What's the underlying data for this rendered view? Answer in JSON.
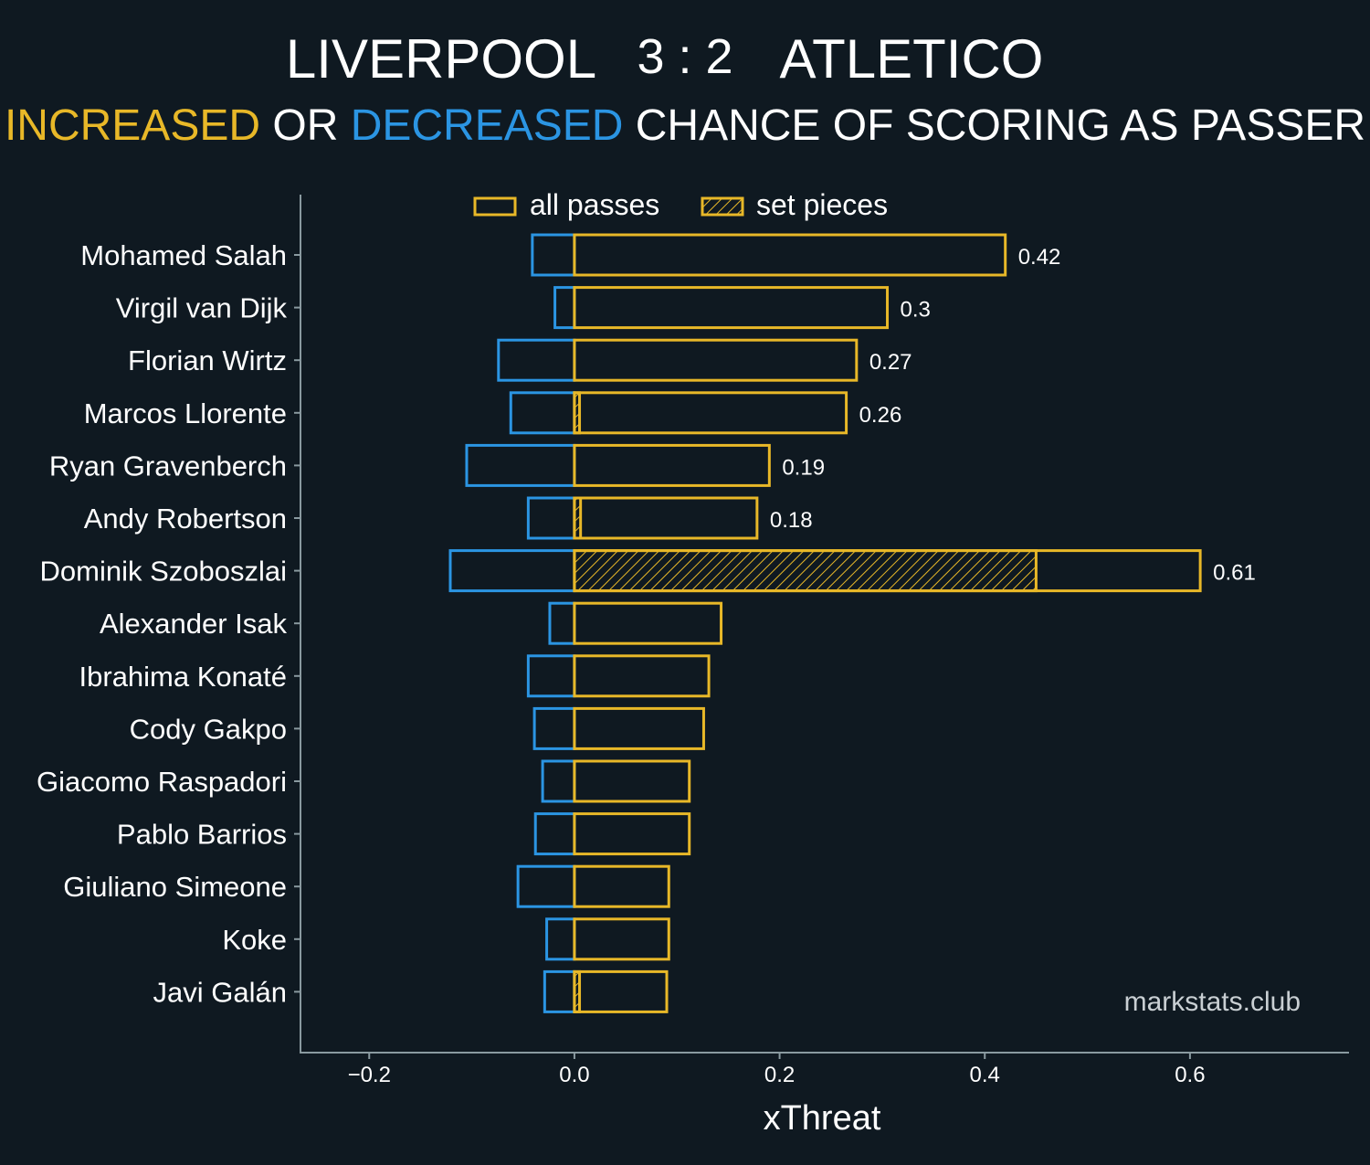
{
  "header": {
    "home_team": "LIVERPOOL",
    "score": "3 : 2",
    "away_team": "ATLETICO",
    "subtitle_parts": [
      {
        "text": "INCREASED",
        "color": "#e8b828"
      },
      {
        "text": " OR ",
        "color": "#ffffff"
      },
      {
        "text": "DECREASED",
        "color": "#2b95e3"
      },
      {
        "text": " CHANCE OF SCORING AS PASSER",
        "color": "#ffffff"
      }
    ]
  },
  "legend": {
    "all_passes_label": "all passes",
    "set_pieces_label": "set pieces"
  },
  "watermark": "markstats.club",
  "colors": {
    "background": "#0f1921",
    "increase": "#e8b828",
    "decrease": "#2b95e3",
    "axis": "#8a9aa0",
    "text": "#ffffff"
  },
  "chart_data": {
    "type": "bar",
    "orientation": "horizontal",
    "xlabel": "xThreat",
    "xlim": [
      -0.267,
      0.755
    ],
    "xticks": [
      -0.2,
      0.0,
      0.2,
      0.4,
      0.6
    ],
    "xtick_labels": [
      "−0.2",
      "0.0",
      "0.2",
      "0.4",
      "0.6"
    ],
    "legend_position": "top-center",
    "grid": false,
    "categories": [
      "Mohamed Salah",
      "Virgil van Dijk",
      "Florian Wirtz",
      "Marcos Llorente",
      "Ryan Gravenberch",
      "Andy Robertson",
      "Dominik Szoboszlai",
      "Alexander Isak",
      "Ibrahima Konaté",
      "Cody Gakpo",
      "Giacomo Raspadori",
      "Pablo Barrios",
      "Giuliano Simeone",
      "Koke",
      "Javi Galán"
    ],
    "series": [
      {
        "name": "all passes",
        "values": [
          0.42,
          0.305,
          0.275,
          0.265,
          0.19,
          0.178,
          0.61,
          0.143,
          0.131,
          0.126,
          0.112,
          0.112,
          0.092,
          0.092,
          0.09
        ]
      },
      {
        "name": "decreased",
        "values": [
          -0.041,
          -0.019,
          -0.074,
          -0.062,
          -0.105,
          -0.045,
          -0.121,
          -0.024,
          -0.045,
          -0.039,
          -0.031,
          -0.038,
          -0.055,
          -0.027,
          -0.029
        ]
      },
      {
        "name": "set pieces",
        "values": [
          0,
          0,
          0,
          0.005,
          0,
          0.006,
          0.45,
          0,
          0,
          0,
          0,
          0,
          0,
          0,
          0.005
        ]
      }
    ],
    "data_labels": [
      "0.42",
      "0.3",
      "0.27",
      "0.26",
      "0.19",
      "0.18",
      "0.61",
      "",
      "",
      "",
      "",
      "",
      "",
      "",
      ""
    ]
  }
}
